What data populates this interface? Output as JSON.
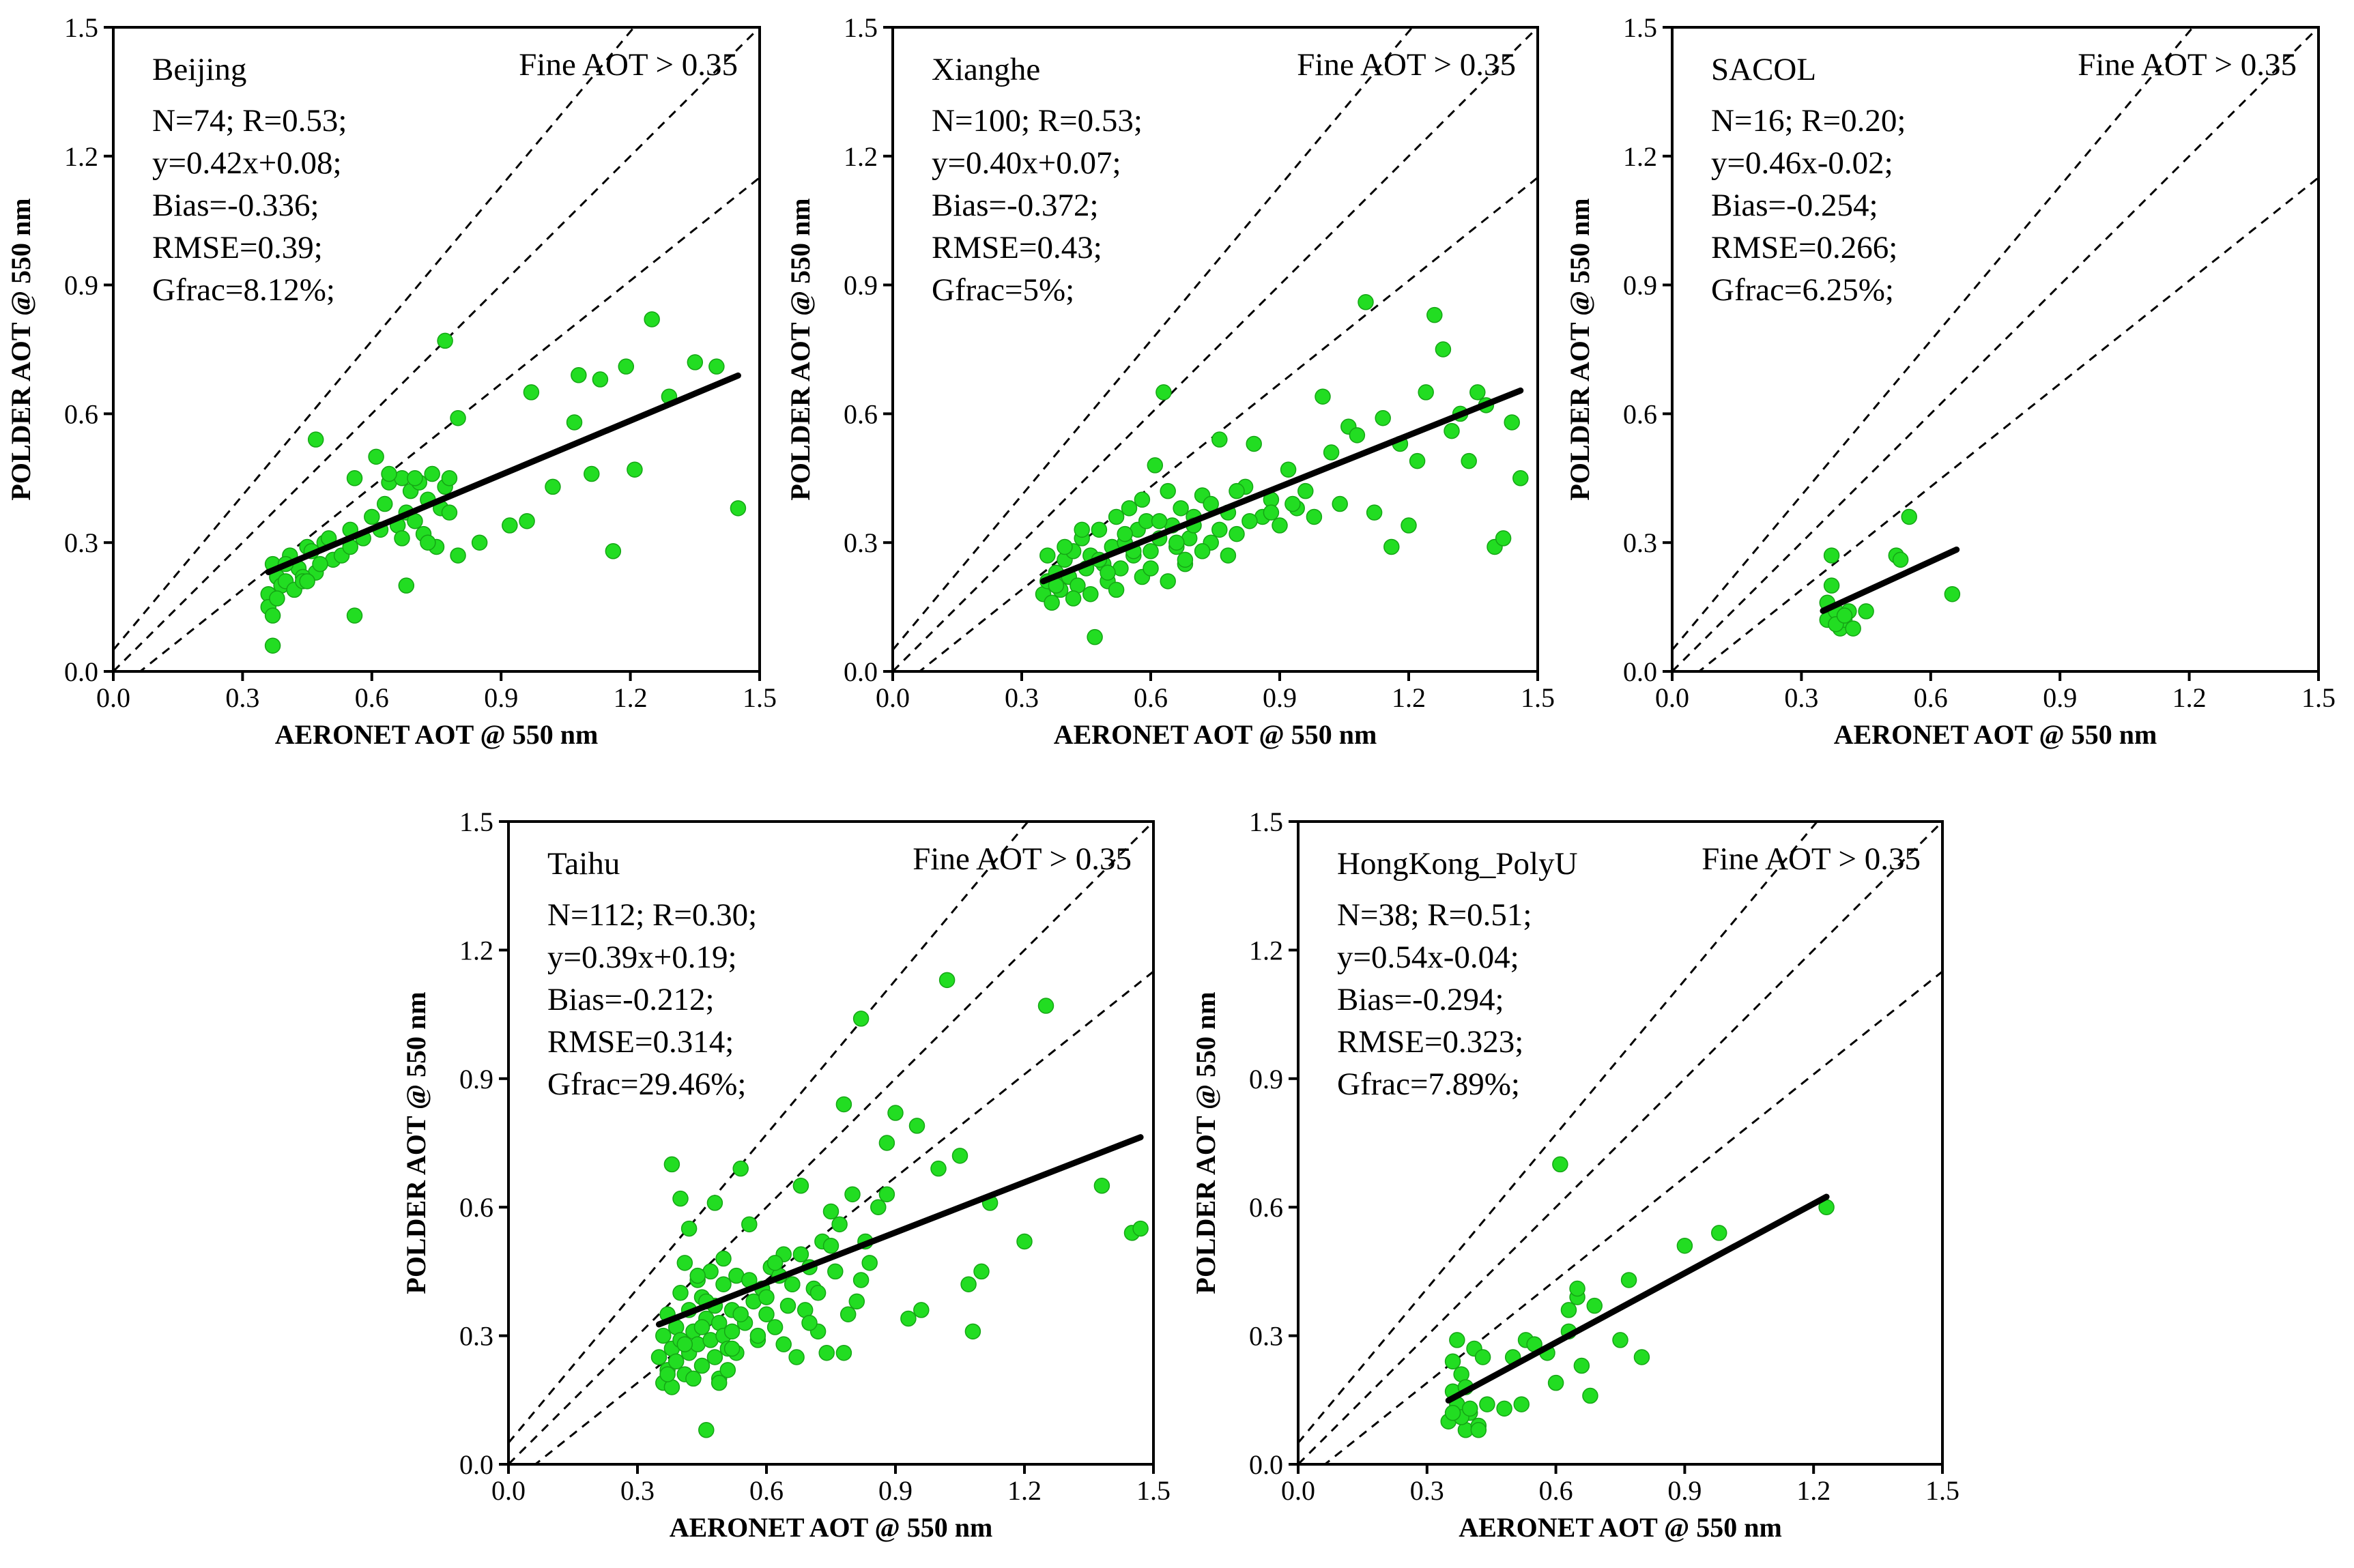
{
  "chart_data": [
    {
      "type": "scatter",
      "site": "Beijing",
      "condition": "Fine AOT > 0.35",
      "stats": [
        "N=74; R=0.53;",
        "y=0.42x+0.08;",
        "Bias=-0.336;",
        "RMSE=0.39;",
        "Gfrac=8.12%;"
      ],
      "xlabel": "AERONET AOT @ 550 nm",
      "ylabel": "POLDER AOT @ 550 nm",
      "xlim": [
        0,
        1.5
      ],
      "ylim": [
        0,
        1.5
      ],
      "xticks": [
        "0.0",
        "0.3",
        "0.6",
        "0.9",
        "1.2",
        "1.5"
      ],
      "yticks": [
        "0.0",
        "0.3",
        "0.6",
        "0.9",
        "1.2",
        "1.5"
      ],
      "fit": {
        "slope": 0.42,
        "intercept": 0.08,
        "x_range": [
          0.36,
          1.45
        ]
      },
      "reference_lines": [
        {
          "slope": 1.2,
          "intercept": 0.05
        },
        {
          "slope": 1.0,
          "intercept": 0.0
        },
        {
          "slope": 0.8,
          "intercept": -0.05
        }
      ],
      "x": [
        0.36,
        0.37,
        0.38,
        0.39,
        0.41,
        0.43,
        0.45,
        0.47,
        0.49,
        0.51,
        0.36,
        0.37,
        0.38,
        0.4,
        0.42,
        0.44,
        0.46,
        0.48,
        0.5,
        0.53,
        0.55,
        0.56,
        0.58,
        0.6,
        0.62,
        0.63,
        0.64,
        0.66,
        0.67,
        0.68,
        0.69,
        0.7,
        0.71,
        0.72,
        0.73,
        0.74,
        0.75,
        0.76,
        0.77,
        0.78,
        0.8,
        0.56,
        0.61,
        0.64,
        0.67,
        0.7,
        0.73,
        0.77,
        0.8,
        0.85,
        0.92,
        0.97,
        1.08,
        1.13,
        1.16,
        0.47,
        0.44,
        0.78,
        0.96,
        1.07,
        1.11,
        1.21,
        1.25,
        1.29,
        1.35,
        1.4,
        1.45,
        1.19,
        1.02,
        0.68,
        0.55,
        0.37,
        0.4,
        0.45
      ],
      "y": [
        0.18,
        0.25,
        0.22,
        0.2,
        0.27,
        0.24,
        0.29,
        0.23,
        0.3,
        0.26,
        0.15,
        0.13,
        0.17,
        0.21,
        0.19,
        0.22,
        0.28,
        0.25,
        0.31,
        0.27,
        0.33,
        0.45,
        0.31,
        0.36,
        0.33,
        0.39,
        0.44,
        0.34,
        0.45,
        0.37,
        0.42,
        0.35,
        0.44,
        0.32,
        0.4,
        0.46,
        0.29,
        0.38,
        0.43,
        0.37,
        0.27,
        0.13,
        0.5,
        0.46,
        0.31,
        0.45,
        0.3,
        0.77,
        0.59,
        0.3,
        0.34,
        0.65,
        0.69,
        0.68,
        0.28,
        0.54,
        0.21,
        0.45,
        0.35,
        0.58,
        0.46,
        0.47,
        0.82,
        0.64,
        0.72,
        0.71,
        0.38,
        0.71,
        0.43,
        0.2,
        0.29,
        0.06,
        0.25,
        0.21
      ]
    },
    {
      "type": "scatter",
      "site": "Xianghe",
      "condition": "Fine AOT > 0.35",
      "stats": [
        "N=100; R=0.53;",
        "y=0.40x+0.07;",
        "Bias=-0.372;",
        "RMSE=0.43;",
        "Gfrac=5%;"
      ],
      "xlabel": "AERONET AOT @ 550 nm",
      "ylabel": "POLDER AOT @ 550 nm",
      "xlim": [
        0,
        1.5
      ],
      "ylim": [
        0,
        1.5
      ],
      "xticks": [
        "0.0",
        "0.3",
        "0.6",
        "0.9",
        "1.2",
        "1.5"
      ],
      "yticks": [
        "0.0",
        "0.3",
        "0.6",
        "0.9",
        "1.2",
        "1.5"
      ],
      "fit": {
        "slope": 0.4,
        "intercept": 0.07,
        "x_range": [
          0.35,
          1.46
        ]
      },
      "reference_lines": [
        {
          "slope": 1.2,
          "intercept": 0.05
        },
        {
          "slope": 1.0,
          "intercept": 0.0
        },
        {
          "slope": 0.8,
          "intercept": -0.05
        }
      ],
      "x": [
        0.35,
        0.36,
        0.37,
        0.38,
        0.39,
        0.4,
        0.41,
        0.42,
        0.43,
        0.44,
        0.45,
        0.46,
        0.47,
        0.48,
        0.49,
        0.5,
        0.51,
        0.52,
        0.53,
        0.54,
        0.55,
        0.56,
        0.57,
        0.58,
        0.59,
        0.6,
        0.61,
        0.62,
        0.63,
        0.64,
        0.65,
        0.66,
        0.67,
        0.68,
        0.69,
        0.7,
        0.72,
        0.74,
        0.76,
        0.78,
        0.8,
        0.82,
        0.84,
        0.86,
        0.88,
        0.9,
        0.92,
        0.94,
        0.96,
        0.98,
        1.0,
        1.02,
        1.04,
        1.06,
        1.08,
        1.1,
        1.12,
        1.14,
        1.16,
        1.18,
        1.2,
        1.22,
        1.24,
        1.26,
        1.28,
        1.3,
        1.32,
        1.34,
        1.36,
        1.38,
        1.4,
        1.42,
        1.44,
        1.46,
        0.36,
        0.38,
        0.4,
        0.42,
        0.44,
        0.46,
        0.48,
        0.5,
        0.52,
        0.54,
        0.56,
        0.58,
        0.6,
        0.62,
        0.64,
        0.66,
        0.68,
        0.7,
        0.72,
        0.74,
        0.76,
        0.78,
        0.8,
        0.83,
        0.88,
        0.93
      ],
      "y": [
        0.18,
        0.21,
        0.16,
        0.23,
        0.19,
        0.26,
        0.22,
        0.28,
        0.2,
        0.31,
        0.24,
        0.27,
        0.08,
        0.33,
        0.25,
        0.21,
        0.29,
        0.36,
        0.24,
        0.3,
        0.38,
        0.27,
        0.33,
        0.22,
        0.35,
        0.28,
        0.48,
        0.31,
        0.65,
        0.42,
        0.34,
        0.29,
        0.38,
        0.25,
        0.31,
        0.36,
        0.41,
        0.3,
        0.54,
        0.37,
        0.32,
        0.43,
        0.53,
        0.36,
        0.4,
        0.34,
        0.47,
        0.38,
        0.42,
        0.36,
        0.64,
        0.51,
        0.39,
        0.57,
        0.55,
        0.86,
        0.37,
        0.59,
        0.29,
        0.53,
        0.34,
        0.49,
        0.65,
        0.83,
        0.75,
        0.56,
        0.6,
        0.49,
        0.65,
        0.62,
        0.29,
        0.31,
        0.58,
        0.45,
        0.27,
        0.2,
        0.29,
        0.17,
        0.33,
        0.18,
        0.26,
        0.23,
        0.19,
        0.32,
        0.28,
        0.4,
        0.24,
        0.35,
        0.21,
        0.3,
        0.26,
        0.34,
        0.28,
        0.39,
        0.33,
        0.27,
        0.42,
        0.35,
        0.37,
        0.39
      ]
    },
    {
      "type": "scatter",
      "site": "SACOL",
      "condition": "Fine AOT > 0.35",
      "stats": [
        "N=16; R=0.20;",
        "y=0.46x-0.02;",
        "Bias=-0.254;",
        "RMSE=0.266;",
        "Gfrac=6.25%;"
      ],
      "xlabel": "AERONET AOT @ 550 nm",
      "ylabel": "POLDER AOT @ 550 nm",
      "xlim": [
        0,
        1.5
      ],
      "ylim": [
        0,
        1.5
      ],
      "xticks": [
        "0.0",
        "0.3",
        "0.6",
        "0.9",
        "1.2",
        "1.5"
      ],
      "yticks": [
        "0.0",
        "0.3",
        "0.6",
        "0.9",
        "1.2",
        "1.5"
      ],
      "fit": {
        "slope": 0.46,
        "intercept": -0.02,
        "x_range": [
          0.35,
          0.66
        ]
      },
      "reference_lines": [
        {
          "slope": 1.2,
          "intercept": 0.05
        },
        {
          "slope": 1.0,
          "intercept": 0.0
        },
        {
          "slope": 0.8,
          "intercept": -0.05
        }
      ],
      "x": [
        0.36,
        0.37,
        0.37,
        0.38,
        0.39,
        0.4,
        0.41,
        0.42,
        0.36,
        0.38,
        0.4,
        0.45,
        0.52,
        0.53,
        0.55,
        0.65
      ],
      "y": [
        0.12,
        0.27,
        0.2,
        0.14,
        0.1,
        0.12,
        0.14,
        0.1,
        0.16,
        0.11,
        0.13,
        0.14,
        0.27,
        0.26,
        0.36,
        0.18
      ]
    },
    {
      "type": "scatter",
      "site": "Taihu",
      "condition": "Fine AOT > 0.35",
      "stats": [
        "N=112; R=0.30;",
        "y=0.39x+0.19;",
        "Bias=-0.212;",
        "RMSE=0.314;",
        "Gfrac=29.46%;"
      ],
      "xlabel": "AERONET AOT @ 550 nm",
      "ylabel": "POLDER AOT @ 550 nm",
      "xlim": [
        0,
        1.5
      ],
      "ylim": [
        0,
        1.5
      ],
      "xticks": [
        "0.0",
        "0.3",
        "0.6",
        "0.9",
        "1.2",
        "1.5"
      ],
      "yticks": [
        "0.0",
        "0.3",
        "0.6",
        "0.9",
        "1.2",
        "1.5"
      ],
      "fit": {
        "slope": 0.39,
        "intercept": 0.19,
        "x_range": [
          0.35,
          1.47
        ]
      },
      "reference_lines": [
        {
          "slope": 1.2,
          "intercept": 0.05
        },
        {
          "slope": 1.0,
          "intercept": 0.0
        },
        {
          "slope": 0.8,
          "intercept": -0.05
        }
      ],
      "x": [
        0.35,
        0.36,
        0.36,
        0.37,
        0.37,
        0.38,
        0.38,
        0.39,
        0.39,
        0.4,
        0.4,
        0.41,
        0.41,
        0.42,
        0.42,
        0.43,
        0.43,
        0.44,
        0.44,
        0.45,
        0.45,
        0.46,
        0.46,
        0.47,
        0.47,
        0.48,
        0.48,
        0.49,
        0.49,
        0.5,
        0.5,
        0.51,
        0.51,
        0.52,
        0.52,
        0.53,
        0.53,
        0.54,
        0.55,
        0.56,
        0.57,
        0.58,
        0.59,
        0.6,
        0.61,
        0.62,
        0.63,
        0.64,
        0.65,
        0.66,
        0.67,
        0.68,
        0.69,
        0.7,
        0.71,
        0.72,
        0.73,
        0.74,
        0.75,
        0.76,
        0.77,
        0.78,
        0.79,
        0.8,
        0.81,
        0.82,
        0.83,
        0.84,
        0.86,
        0.88,
        0.9,
        0.93,
        0.96,
        1.0,
        1.02,
        1.05,
        1.08,
        1.1,
        1.12,
        1.2,
        1.25,
        1.38,
        1.45,
        1.47,
        0.38,
        0.4,
        0.42,
        0.44,
        0.46,
        0.48,
        0.5,
        0.52,
        0.54,
        0.56,
        0.58,
        0.6,
        0.62,
        0.64,
        0.66,
        0.68,
        0.7,
        0.72,
        0.75,
        0.78,
        0.82,
        0.88,
        0.95,
        1.07,
        0.37,
        0.41,
        0.45,
        0.49
      ],
      "y": [
        0.25,
        0.19,
        0.3,
        0.22,
        0.35,
        0.27,
        0.18,
        0.32,
        0.24,
        0.4,
        0.29,
        0.21,
        0.47,
        0.26,
        0.36,
        0.31,
        0.2,
        0.43,
        0.28,
        0.23,
        0.39,
        0.34,
        0.08,
        0.29,
        0.45,
        0.25,
        0.37,
        0.33,
        0.2,
        0.3,
        0.42,
        0.27,
        0.22,
        0.36,
        0.31,
        0.44,
        0.26,
        0.69,
        0.33,
        0.56,
        0.38,
        0.29,
        0.41,
        0.35,
        0.46,
        0.32,
        0.44,
        0.49,
        0.37,
        0.42,
        0.25,
        0.65,
        0.36,
        0.46,
        0.41,
        0.31,
        0.52,
        0.26,
        0.59,
        0.45,
        0.56,
        0.84,
        0.35,
        0.63,
        0.38,
        1.04,
        0.52,
        0.47,
        0.6,
        0.75,
        0.82,
        0.34,
        0.36,
        0.69,
        1.13,
        0.72,
        0.31,
        0.45,
        0.61,
        0.52,
        1.07,
        0.65,
        0.54,
        0.55,
        0.7,
        0.62,
        0.55,
        0.44,
        0.38,
        0.61,
        0.48,
        0.27,
        0.35,
        0.43,
        0.3,
        0.39,
        0.47,
        0.28,
        0.42,
        0.49,
        0.33,
        0.4,
        0.51,
        0.26,
        0.43,
        0.63,
        0.79,
        0.42,
        0.21,
        0.28,
        0.32,
        0.19
      ]
    },
    {
      "type": "scatter",
      "site": "HongKong_PolyU",
      "condition": "Fine AOT > 0.35",
      "stats": [
        "N=38; R=0.51;",
        "y=0.54x-0.04;",
        "Bias=-0.294;",
        "RMSE=0.323;",
        "Gfrac=7.89%;"
      ],
      "xlabel": "AERONET AOT @ 550 nm",
      "ylabel": "POLDER AOT @ 550 nm",
      "xlim": [
        0,
        1.5
      ],
      "ylim": [
        0,
        1.5
      ],
      "xticks": [
        "0.0",
        "0.3",
        "0.6",
        "0.9",
        "1.2",
        "1.5"
      ],
      "yticks": [
        "0.0",
        "0.3",
        "0.6",
        "0.9",
        "1.2",
        "1.5"
      ],
      "fit": {
        "slope": 0.54,
        "intercept": -0.04,
        "x_range": [
          0.35,
          1.23
        ]
      },
      "reference_lines": [
        {
          "slope": 1.2,
          "intercept": 0.05
        },
        {
          "slope": 1.0,
          "intercept": 0.0
        },
        {
          "slope": 0.8,
          "intercept": -0.05
        }
      ],
      "x": [
        0.35,
        0.36,
        0.37,
        0.37,
        0.38,
        0.39,
        0.4,
        0.41,
        0.42,
        0.43,
        0.36,
        0.38,
        0.4,
        0.42,
        0.48,
        0.5,
        0.52,
        0.53,
        0.55,
        0.58,
        0.6,
        0.61,
        0.63,
        0.65,
        0.65,
        0.66,
        0.68,
        0.69,
        0.75,
        0.77,
        0.8,
        0.9,
        0.98,
        1.23,
        0.63,
        0.44,
        0.36,
        0.39
      ],
      "y": [
        0.1,
        0.24,
        0.14,
        0.29,
        0.21,
        0.08,
        0.12,
        0.27,
        0.09,
        0.25,
        0.17,
        0.11,
        0.13,
        0.08,
        0.13,
        0.25,
        0.14,
        0.29,
        0.28,
        0.26,
        0.19,
        0.7,
        0.31,
        0.39,
        0.41,
        0.23,
        0.16,
        0.37,
        0.29,
        0.43,
        0.25,
        0.51,
        0.54,
        0.6,
        0.36,
        0.14,
        0.12,
        0.18
      ]
    }
  ]
}
